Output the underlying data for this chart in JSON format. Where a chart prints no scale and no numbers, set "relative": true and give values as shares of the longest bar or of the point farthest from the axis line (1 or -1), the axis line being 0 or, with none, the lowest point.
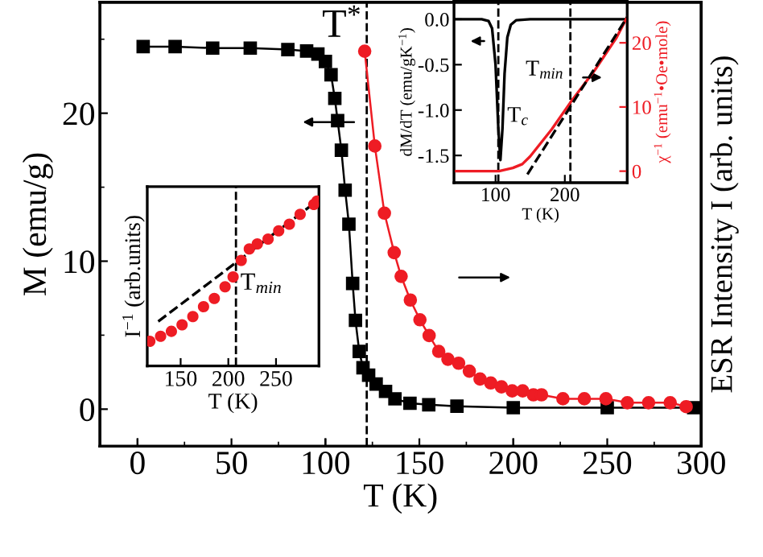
{
  "chart_data": [
    {
      "type": "line",
      "xlabel": "T (K)",
      "ylabel": "M (emu/g)",
      "xlim": [
        -20,
        300
      ],
      "xticks": [
        0,
        50,
        100,
        150,
        200,
        250,
        300
      ],
      "ylim": [
        -2.5,
        27.5
      ],
      "yticks": [
        0,
        10,
        20
      ],
      "grid": false,
      "legend": false,
      "ref_lines": [
        {
          "axis": "x",
          "value": 122,
          "label": "T$^{*}$",
          "line_style": "dashed",
          "color": "#000000"
        }
      ],
      "series": [
        {
          "marker": "square",
          "color": "#000000",
          "x": [
            3,
            20,
            40,
            60,
            80,
            90,
            96,
            100,
            103,
            105,
            106.5,
            108.5,
            110.5,
            112.5,
            114.5,
            116,
            118,
            120,
            123,
            127,
            132,
            137,
            145,
            155,
            170,
            200,
            250,
            296
          ],
          "values": [
            24.5,
            24.5,
            24.4,
            24.4,
            24.3,
            24.2,
            24.0,
            23.5,
            22.6,
            21.0,
            19.5,
            17.5,
            14.8,
            12.5,
            8.5,
            6.0,
            3.9,
            2.8,
            2.3,
            1.7,
            1.2,
            0.7,
            0.4,
            0.3,
            0.2,
            0.1,
            0.1,
            0.1
          ]
        }
      ]
    },
    {
      "type": "line",
      "relative": true,
      "y2label": "ESR Intensity I (arb. units)",
      "xlim": [
        -20,
        300
      ],
      "tick_labels": false,
      "grid": false,
      "legend": false,
      "series": [
        {
          "marker": "circle",
          "color": "#ee1c24",
          "axis": "y2",
          "x": [
            120.9,
            126.3,
            131.4,
            136.6,
            140.3,
            145.2,
            150.3,
            155.2,
            160.3,
            165.2,
            170.9,
            176.6,
            182.3,
            188,
            193.7,
            199.4,
            205,
            210.7,
            215,
            226.4,
            237.8,
            249.3,
            260.7,
            272,
            283.5,
            292
          ],
          "values": [
            1.0,
            0.76,
            0.59,
            0.49,
            0.43,
            0.37,
            0.32,
            0.28,
            0.24,
            0.22,
            0.21,
            0.19,
            0.17,
            0.16,
            0.15,
            0.14,
            0.14,
            0.13,
            0.13,
            0.12,
            0.12,
            0.12,
            0.11,
            0.11,
            0.11,
            0.1
          ]
        }
      ]
    },
    {
      "type": "scatter",
      "relative": true,
      "xlabel": "T (K)",
      "ylabel": "I$^{−1}$ (arb.units)",
      "xlim": [
        115,
        295
      ],
      "xticks": [
        150,
        200,
        250
      ],
      "tick_labels": "x",
      "grid": false,
      "legend": false,
      "ref_lines": [
        {
          "axis": "x",
          "value": 208,
          "label": "T$_{min}$",
          "line_style": "dashed",
          "color": "#000000"
        }
      ],
      "series": [
        {
          "marker": "circle",
          "color": "#ee1c24",
          "x": [
            117.7,
            129,
            140.3,
            151.5,
            162.8,
            174,
            185.3,
            196.6,
            205,
            213.5,
            222,
            230.4,
            241.7,
            252.8,
            264,
            275.3,
            289.6,
            293
          ],
          "values": [
            0.15,
            0.18,
            0.21,
            0.25,
            0.3,
            0.36,
            0.41,
            0.48,
            0.54,
            0.64,
            0.71,
            0.74,
            0.77,
            0.82,
            0.86,
            0.92,
            0.98,
            1.0
          ]
        },
        {
          "type": "line",
          "line_style": "dashed",
          "color": "#000000",
          "x": [
            126.5,
            293
          ],
          "values": [
            0.27,
            1.0
          ]
        }
      ]
    },
    {
      "type": "line",
      "xlabel": "T (K)",
      "ylabel": "dM/dT (emu/gK$^{−1}$)",
      "y2label": "χ$^{−1}$ (emu$^{−1}$•Oe•mole)",
      "xlim": [
        40,
        290
      ],
      "xticks": [
        100,
        200
      ],
      "ylim": [
        -1.8,
        0.2
      ],
      "yticks": [
        {
          "value": 0,
          "label": "0.0"
        },
        {
          "value": -0.5,
          "label": "-0.5"
        },
        {
          "value": -1.0,
          "label": "-1.0"
        },
        {
          "value": -1.5,
          "label": "-1.5"
        }
      ],
      "y2lim": [
        -1.8,
        26.5
      ],
      "y2ticks": [
        0,
        10,
        20
      ],
      "grid": false,
      "legend": false,
      "ref_lines": [
        {
          "axis": "x",
          "value": 104,
          "label": "T$_{c}$",
          "line_style": "dashed",
          "color": "#000000"
        },
        {
          "axis": "x",
          "value": 208,
          "label": "T$_{min}$",
          "line_style": "dashed",
          "color": "#000000"
        }
      ],
      "series": [
        {
          "color": "#000000",
          "x": [
            40,
            80,
            90,
            95,
            100,
            104,
            107,
            110,
            113,
            117,
            122,
            130,
            150,
            290
          ],
          "values": [
            0,
            0,
            -0.02,
            -0.1,
            -0.5,
            -1.2,
            -1.55,
            -1.2,
            -0.6,
            -0.2,
            -0.06,
            -0.01,
            0,
            0
          ]
        },
        {
          "color": "#ee1c24",
          "axis": "y2",
          "x": [
            40,
            105,
            125,
            138.6,
            150,
            181,
            208,
            243,
            274,
            290
          ],
          "values": [
            0,
            0,
            0.5,
            1.1,
            2.3,
            6.5,
            10.7,
            15.7,
            20.7,
            24
          ]
        },
        {
          "line_style": "dashed",
          "color": "#000000",
          "axis": "y2",
          "x": [
            146,
            290
          ],
          "values": [
            -0.5,
            24
          ]
        }
      ]
    }
  ]
}
